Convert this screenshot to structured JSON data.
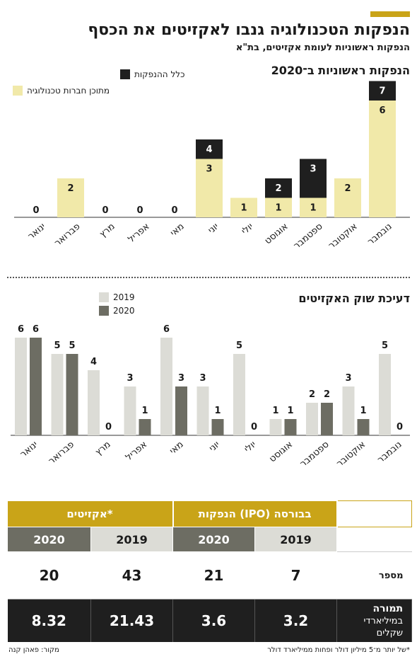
{
  "header": {
    "title": "הנפקות הטכנולוגיה גנבו לאקזיטים את הכסף",
    "subtitle": "הנפקות ראשוניות לעומת אקזיטים, בת\"א"
  },
  "colors": {
    "accent": "#c9a418",
    "black": "#1f1f1f",
    "cream": "#f1e9a9",
    "light_gray": "#dcdcd6",
    "dark_gray": "#6d6d63"
  },
  "chart_data": [
    {
      "type": "bar",
      "title": "הנפקות ראשוניות ב־2020",
      "categories": [
        "ינואר",
        "פברואר",
        "מרץ",
        "אפריל",
        "מאי",
        "יוני",
        "יולי",
        "אוגוסט",
        "ספטמבר",
        "אוקטובר",
        "נובמבר"
      ],
      "series": [
        {
          "name": "כלל ההנפקות",
          "values": [
            0,
            2,
            0,
            0,
            0,
            4,
            1,
            2,
            3,
            2,
            7
          ]
        },
        {
          "name": "מתוכן חברות טכנולוגיה",
          "values": [
            0,
            2,
            0,
            0,
            0,
            3,
            1,
            1,
            1,
            2,
            6
          ]
        }
      ],
      "ylim": [
        0,
        7
      ],
      "legend": "top-left"
    },
    {
      "type": "bar",
      "title": "דעיכת שוק האקזיטים",
      "categories": [
        "ינואר",
        "פברואר",
        "מרץ",
        "אפריל",
        "מאי",
        "יוני",
        "יולי",
        "אוגוסט",
        "ספטמבר",
        "אוקטובר",
        "נובמבר"
      ],
      "series": [
        {
          "name": "2019",
          "values": [
            6,
            5,
            4,
            3,
            6,
            3,
            5,
            1,
            2,
            3,
            5
          ]
        },
        {
          "name": "2020",
          "values": [
            6,
            5,
            0,
            1,
            3,
            1,
            0,
            1,
            2,
            1,
            0
          ]
        }
      ],
      "ylim": [
        0,
        6
      ],
      "legend": "top-center"
    },
    {
      "type": "table",
      "groups": [
        "אקזיטים*",
        "הנפקות (IPO) בבורסה"
      ],
      "years": [
        "2020",
        "2019",
        "2020",
        "2019"
      ],
      "rows": [
        {
          "label": "מספר",
          "values": [
            "20",
            "43",
            "21",
            "7"
          ]
        },
        {
          "label_main": "תמורה",
          "label_sub": "במיליארדי שקלים",
          "values": [
            "8.32",
            "21.43",
            "3.6",
            "3.2"
          ]
        }
      ]
    }
  ],
  "footnotes": {
    "source": "מקור: פאהן קנה",
    "note": "*של יותר מ־5 מיליון דולר ופחות ממיליארד דולר"
  }
}
